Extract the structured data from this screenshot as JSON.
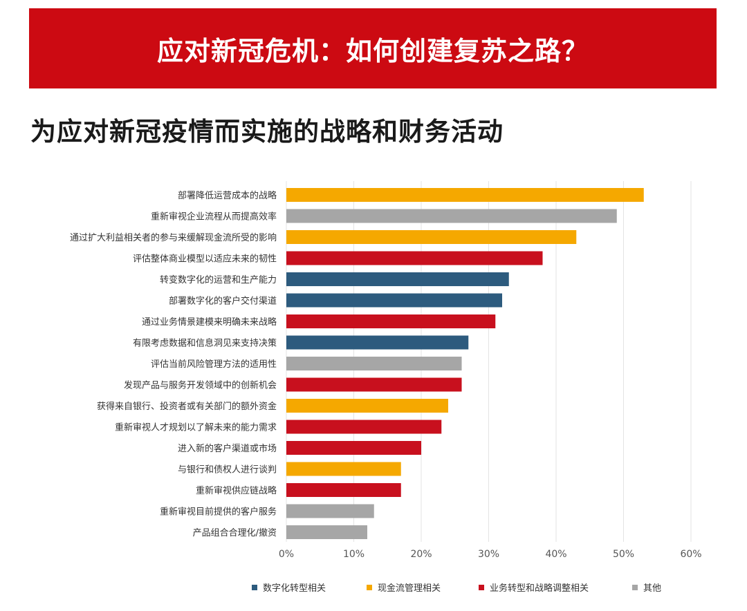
{
  "header": {
    "banner_title": "应对新冠危机：如何创建复苏之路？",
    "subtitle": "为应对新冠疫情而实施的战略和财务活动"
  },
  "colors": {
    "banner_bg": "#cc0a12",
    "数字化转型相关": "#2d5b7e",
    "现金流管理相关": "#f5a800",
    "业务转型和战略调整相关": "#c8101e",
    "其他": "#a6a6a6"
  },
  "chart_data": {
    "type": "bar",
    "orientation": "horizontal",
    "xlim": [
      0,
      60
    ],
    "xticks": [
      "0%",
      "10%",
      "20%",
      "30%",
      "40%",
      "50%",
      "60%"
    ],
    "xtick_values": [
      0,
      10,
      20,
      30,
      40,
      50,
      60
    ],
    "grid": true,
    "legend_position": "bottom",
    "legend": [
      "数字化转型相关",
      "现金流管理相关",
      "业务转型和战略调整相关",
      "其他"
    ],
    "bars": [
      {
        "label": "部署降低运营成本的战略",
        "value": 53,
        "group": "现金流管理相关"
      },
      {
        "label": "重新审视企业流程从而提高效率",
        "value": 49,
        "group": "其他"
      },
      {
        "label": "通过扩大利益相关者的参与来缓解现金流所受的影响",
        "value": 43,
        "group": "现金流管理相关"
      },
      {
        "label": "评估整体商业模型以适应未来的韧性",
        "value": 38,
        "group": "业务转型和战略调整相关"
      },
      {
        "label": "转变数字化的运营和生产能力",
        "value": 33,
        "group": "数字化转型相关"
      },
      {
        "label": "部署数字化的客户交付渠道",
        "value": 32,
        "group": "数字化转型相关"
      },
      {
        "label": "通过业务情景建模来明确未来战略",
        "value": 31,
        "group": "业务转型和战略调整相关"
      },
      {
        "label": "有限考虑数据和信息洞见来支持决策",
        "value": 27,
        "group": "数字化转型相关"
      },
      {
        "label": "评估当前风险管理方法的适用性",
        "value": 26,
        "group": "其他"
      },
      {
        "label": "发现产品与服务开发领域中的创新机会",
        "value": 26,
        "group": "业务转型和战略调整相关"
      },
      {
        "label": "获得来自银行、投资者或有关部门的额外资金",
        "value": 24,
        "group": "现金流管理相关"
      },
      {
        "label": "重新审视人才规划以了解未来的能力需求",
        "value": 23,
        "group": "业务转型和战略调整相关"
      },
      {
        "label": "进入新的客户渠道或市场",
        "value": 20,
        "group": "业务转型和战略调整相关"
      },
      {
        "label": "与银行和债权人进行谈判",
        "value": 17,
        "group": "现金流管理相关"
      },
      {
        "label": "重新审视供应链战略",
        "value": 17,
        "group": "业务转型和战略调整相关"
      },
      {
        "label": "重新审视目前提供的客户服务",
        "value": 13,
        "group": "其他"
      },
      {
        "label": "产品组合合理化/撤资",
        "value": 12,
        "group": "其他"
      }
    ]
  }
}
